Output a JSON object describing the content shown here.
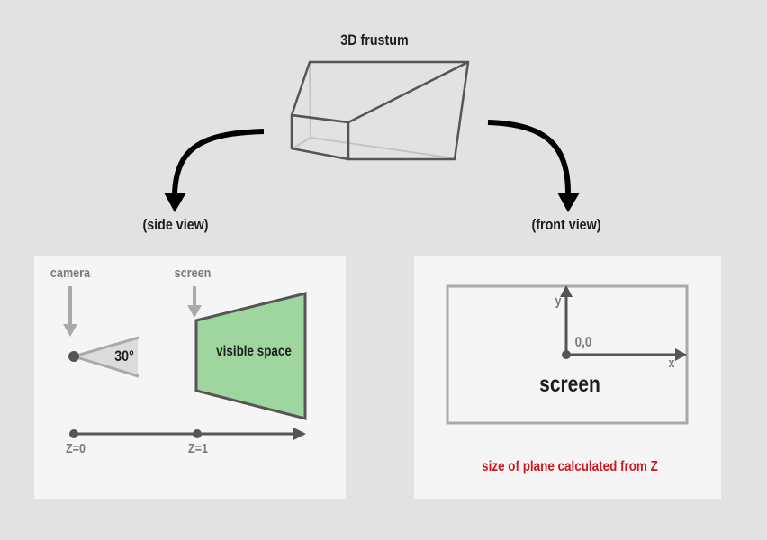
{
  "frustum_title": "3D frustum",
  "side_view_label": "(side view)",
  "front_view_label": "(front view)",
  "side_panel": {
    "camera_label": "camera",
    "screen_label": "screen",
    "angle_label": "30°",
    "visible_space_label": "visible space",
    "z0_label": "Z=0",
    "z1_label": "Z=1"
  },
  "front_panel": {
    "y_label": "y",
    "x_label": "x",
    "origin_label": "0,0",
    "screen_label": "screen",
    "note": "size of plane calculated from Z"
  },
  "colors": {
    "background": "#e2e2e2",
    "panel": "#f5f5f5",
    "visible_space_fill": "#9fd59f",
    "note_text": "#d0171b",
    "gray_arrow": "#aaaaaa"
  }
}
